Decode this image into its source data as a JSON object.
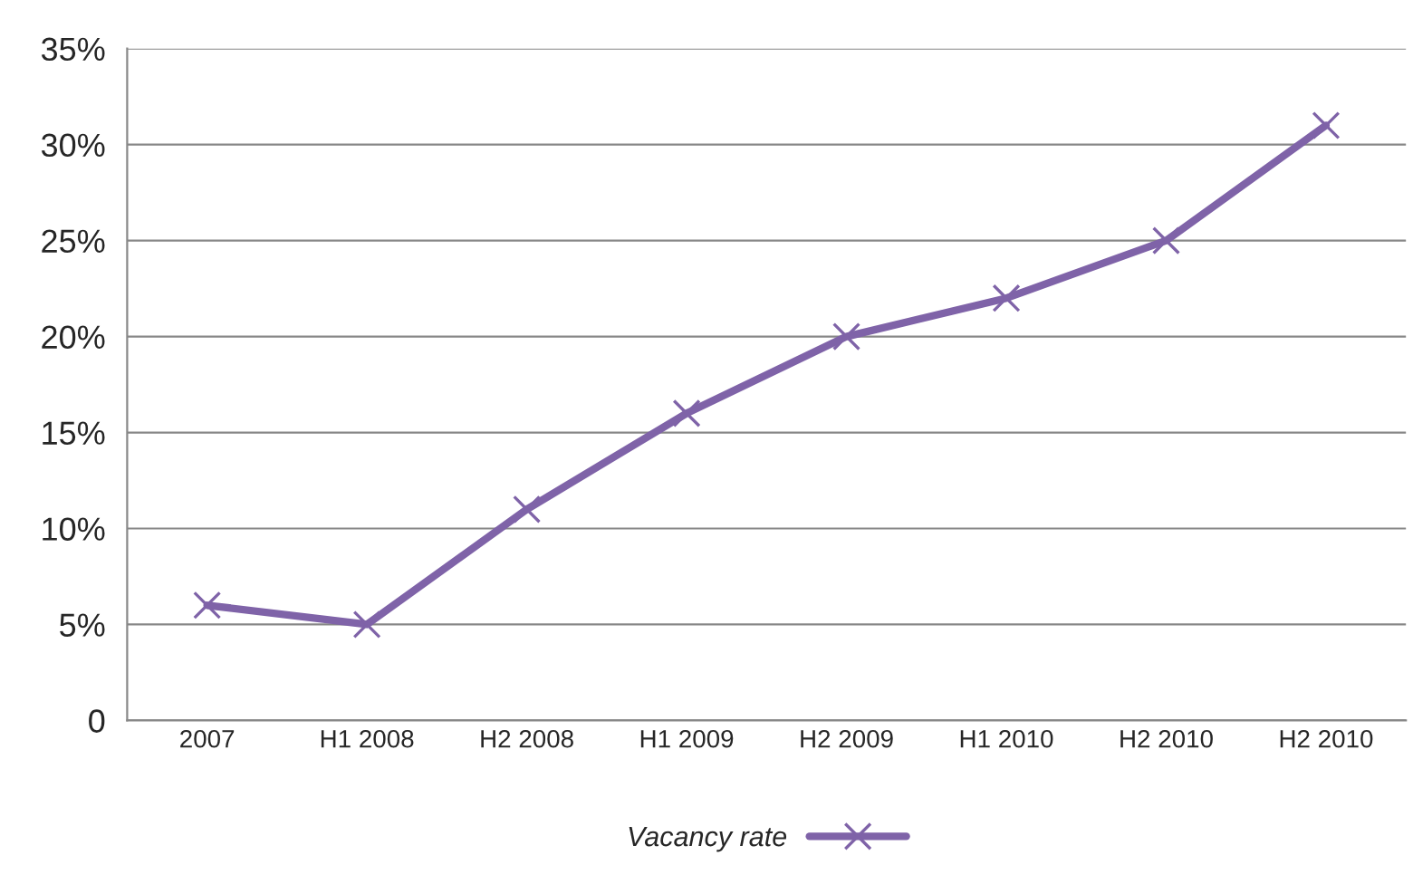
{
  "chart_data": {
    "type": "line",
    "categories": [
      "2007",
      "H1 2008",
      "H2 2008",
      "H1 2009",
      "H2 2009",
      "H1 2010",
      "H2 2010",
      "H2 2010"
    ],
    "series": [
      {
        "name": "Vacancy rate",
        "color": "#7f63a8",
        "values": [
          6,
          5,
          11,
          16,
          20,
          22,
          25,
          31
        ]
      }
    ],
    "ylim": [
      0,
      35
    ],
    "yticks": [
      {
        "value": 0,
        "label": "0"
      },
      {
        "value": 5,
        "label": "5%"
      },
      {
        "value": 10,
        "label": "10%"
      },
      {
        "value": 15,
        "label": "15%"
      },
      {
        "value": 20,
        "label": "20%"
      },
      {
        "value": 25,
        "label": "25%"
      },
      {
        "value": 30,
        "label": "30%"
      },
      {
        "value": 35,
        "label": "35%"
      }
    ],
    "grid": "y",
    "legend": "bottom",
    "marker": "cross",
    "line_style": "solid"
  }
}
